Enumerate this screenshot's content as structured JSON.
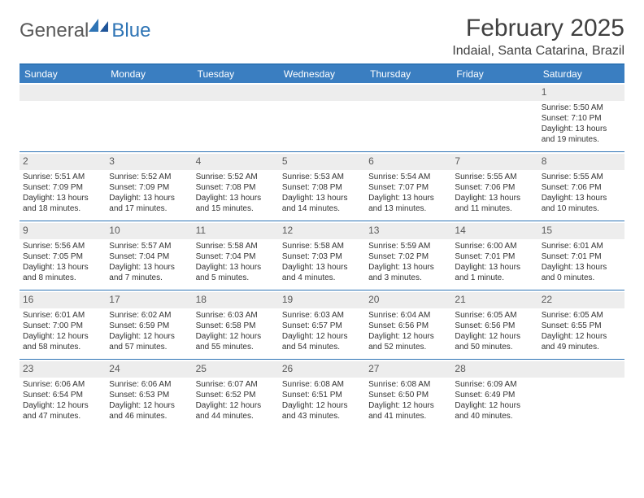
{
  "brand": {
    "part1": "General",
    "part2": "Blue"
  },
  "title": "February 2025",
  "location": "Indaial, Santa Catarina, Brazil",
  "colors": {
    "accent": "#2e74b5",
    "header_bg": "#3a7ec1",
    "daynum_bg": "#ededed",
    "text": "#333333",
    "muted": "#5a5a5a"
  },
  "day_headers": [
    "Sunday",
    "Monday",
    "Tuesday",
    "Wednesday",
    "Thursday",
    "Friday",
    "Saturday"
  ],
  "weeks": [
    [
      null,
      null,
      null,
      null,
      null,
      null,
      {
        "n": "1",
        "sunrise": "Sunrise: 5:50 AM",
        "sunset": "Sunset: 7:10 PM",
        "day1": "Daylight: 13 hours",
        "day2": "and 19 minutes."
      }
    ],
    [
      {
        "n": "2",
        "sunrise": "Sunrise: 5:51 AM",
        "sunset": "Sunset: 7:09 PM",
        "day1": "Daylight: 13 hours",
        "day2": "and 18 minutes."
      },
      {
        "n": "3",
        "sunrise": "Sunrise: 5:52 AM",
        "sunset": "Sunset: 7:09 PM",
        "day1": "Daylight: 13 hours",
        "day2": "and 17 minutes."
      },
      {
        "n": "4",
        "sunrise": "Sunrise: 5:52 AM",
        "sunset": "Sunset: 7:08 PM",
        "day1": "Daylight: 13 hours",
        "day2": "and 15 minutes."
      },
      {
        "n": "5",
        "sunrise": "Sunrise: 5:53 AM",
        "sunset": "Sunset: 7:08 PM",
        "day1": "Daylight: 13 hours",
        "day2": "and 14 minutes."
      },
      {
        "n": "6",
        "sunrise": "Sunrise: 5:54 AM",
        "sunset": "Sunset: 7:07 PM",
        "day1": "Daylight: 13 hours",
        "day2": "and 13 minutes."
      },
      {
        "n": "7",
        "sunrise": "Sunrise: 5:55 AM",
        "sunset": "Sunset: 7:06 PM",
        "day1": "Daylight: 13 hours",
        "day2": "and 11 minutes."
      },
      {
        "n": "8",
        "sunrise": "Sunrise: 5:55 AM",
        "sunset": "Sunset: 7:06 PM",
        "day1": "Daylight: 13 hours",
        "day2": "and 10 minutes."
      }
    ],
    [
      {
        "n": "9",
        "sunrise": "Sunrise: 5:56 AM",
        "sunset": "Sunset: 7:05 PM",
        "day1": "Daylight: 13 hours",
        "day2": "and 8 minutes."
      },
      {
        "n": "10",
        "sunrise": "Sunrise: 5:57 AM",
        "sunset": "Sunset: 7:04 PM",
        "day1": "Daylight: 13 hours",
        "day2": "and 7 minutes."
      },
      {
        "n": "11",
        "sunrise": "Sunrise: 5:58 AM",
        "sunset": "Sunset: 7:04 PM",
        "day1": "Daylight: 13 hours",
        "day2": "and 5 minutes."
      },
      {
        "n": "12",
        "sunrise": "Sunrise: 5:58 AM",
        "sunset": "Sunset: 7:03 PM",
        "day1": "Daylight: 13 hours",
        "day2": "and 4 minutes."
      },
      {
        "n": "13",
        "sunrise": "Sunrise: 5:59 AM",
        "sunset": "Sunset: 7:02 PM",
        "day1": "Daylight: 13 hours",
        "day2": "and 3 minutes."
      },
      {
        "n": "14",
        "sunrise": "Sunrise: 6:00 AM",
        "sunset": "Sunset: 7:01 PM",
        "day1": "Daylight: 13 hours",
        "day2": "and 1 minute."
      },
      {
        "n": "15",
        "sunrise": "Sunrise: 6:01 AM",
        "sunset": "Sunset: 7:01 PM",
        "day1": "Daylight: 13 hours",
        "day2": "and 0 minutes."
      }
    ],
    [
      {
        "n": "16",
        "sunrise": "Sunrise: 6:01 AM",
        "sunset": "Sunset: 7:00 PM",
        "day1": "Daylight: 12 hours",
        "day2": "and 58 minutes."
      },
      {
        "n": "17",
        "sunrise": "Sunrise: 6:02 AM",
        "sunset": "Sunset: 6:59 PM",
        "day1": "Daylight: 12 hours",
        "day2": "and 57 minutes."
      },
      {
        "n": "18",
        "sunrise": "Sunrise: 6:03 AM",
        "sunset": "Sunset: 6:58 PM",
        "day1": "Daylight: 12 hours",
        "day2": "and 55 minutes."
      },
      {
        "n": "19",
        "sunrise": "Sunrise: 6:03 AM",
        "sunset": "Sunset: 6:57 PM",
        "day1": "Daylight: 12 hours",
        "day2": "and 54 minutes."
      },
      {
        "n": "20",
        "sunrise": "Sunrise: 6:04 AM",
        "sunset": "Sunset: 6:56 PM",
        "day1": "Daylight: 12 hours",
        "day2": "and 52 minutes."
      },
      {
        "n": "21",
        "sunrise": "Sunrise: 6:05 AM",
        "sunset": "Sunset: 6:56 PM",
        "day1": "Daylight: 12 hours",
        "day2": "and 50 minutes."
      },
      {
        "n": "22",
        "sunrise": "Sunrise: 6:05 AM",
        "sunset": "Sunset: 6:55 PM",
        "day1": "Daylight: 12 hours",
        "day2": "and 49 minutes."
      }
    ],
    [
      {
        "n": "23",
        "sunrise": "Sunrise: 6:06 AM",
        "sunset": "Sunset: 6:54 PM",
        "day1": "Daylight: 12 hours",
        "day2": "and 47 minutes."
      },
      {
        "n": "24",
        "sunrise": "Sunrise: 6:06 AM",
        "sunset": "Sunset: 6:53 PM",
        "day1": "Daylight: 12 hours",
        "day2": "and 46 minutes."
      },
      {
        "n": "25",
        "sunrise": "Sunrise: 6:07 AM",
        "sunset": "Sunset: 6:52 PM",
        "day1": "Daylight: 12 hours",
        "day2": "and 44 minutes."
      },
      {
        "n": "26",
        "sunrise": "Sunrise: 6:08 AM",
        "sunset": "Sunset: 6:51 PM",
        "day1": "Daylight: 12 hours",
        "day2": "and 43 minutes."
      },
      {
        "n": "27",
        "sunrise": "Sunrise: 6:08 AM",
        "sunset": "Sunset: 6:50 PM",
        "day1": "Daylight: 12 hours",
        "day2": "and 41 minutes."
      },
      {
        "n": "28",
        "sunrise": "Sunrise: 6:09 AM",
        "sunset": "Sunset: 6:49 PM",
        "day1": "Daylight: 12 hours",
        "day2": "and 40 minutes."
      },
      null
    ]
  ]
}
